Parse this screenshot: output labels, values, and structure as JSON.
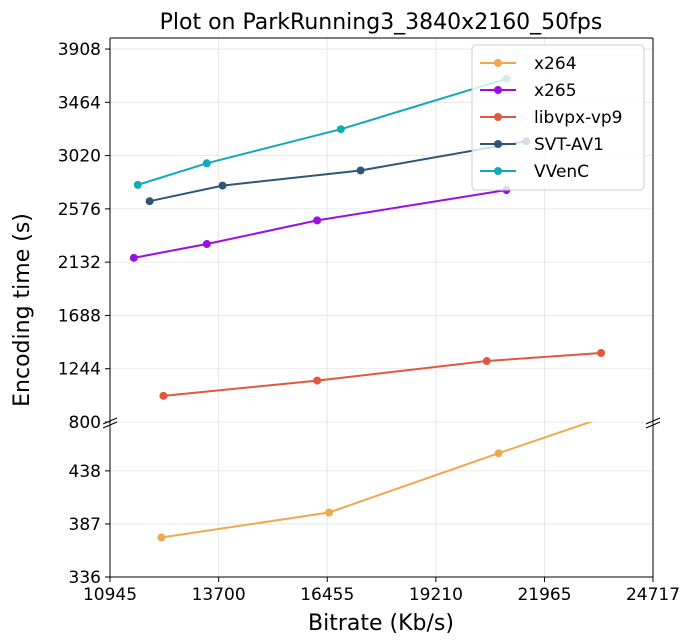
{
  "chart_data": {
    "type": "line",
    "title": "Plot on ParkRunning3_3840x2160_50fps",
    "xlabel": "Bitrate (Kb/s)",
    "ylabel": "Encoding time (s)",
    "xlim": [
      10945,
      24717
    ],
    "x_ticks": [
      "10945",
      "13700",
      "16455",
      "19210",
      "21965",
      "24717"
    ],
    "broken_y_axis": true,
    "upper_ylim": [
      800,
      4000
    ],
    "upper_y_ticks": [
      "800",
      "1244",
      "1688",
      "2132",
      "2576",
      "3020",
      "3464",
      "3908"
    ],
    "lower_ylim": [
      336,
      485
    ],
    "lower_y_ticks": [
      "336",
      "387",
      "438"
    ],
    "grid": true,
    "legend_position": "top-right",
    "series": [
      {
        "name": "x264",
        "color": "#f0a84e",
        "panel": "lower",
        "x": [
          12250,
          16500,
          20800,
          23900
        ],
        "y": [
          374,
          398,
          455,
          495
        ]
      },
      {
        "name": "x265",
        "color": "#9b0fe0",
        "panel": "upper",
        "x": [
          11550,
          13400,
          16200,
          21000
        ],
        "y": [
          2168,
          2283,
          2480,
          2733
        ]
      },
      {
        "name": "libvpx-vp9",
        "color": "#e0583f",
        "panel": "upper",
        "x": [
          12300,
          16200,
          20500,
          23400
        ],
        "y": [
          1018,
          1145,
          1308,
          1375
        ]
      },
      {
        "name": "SVT-AV1",
        "color": "#2e5678",
        "panel": "upper",
        "x": [
          11950,
          13800,
          17300,
          21500
        ],
        "y": [
          2640,
          2770,
          2896,
          3140
        ]
      },
      {
        "name": "VVenC",
        "color": "#11a9b7",
        "panel": "upper",
        "x": [
          11650,
          13400,
          16800,
          21000
        ],
        "y": [
          2776,
          2956,
          3240,
          3660
        ]
      }
    ]
  }
}
